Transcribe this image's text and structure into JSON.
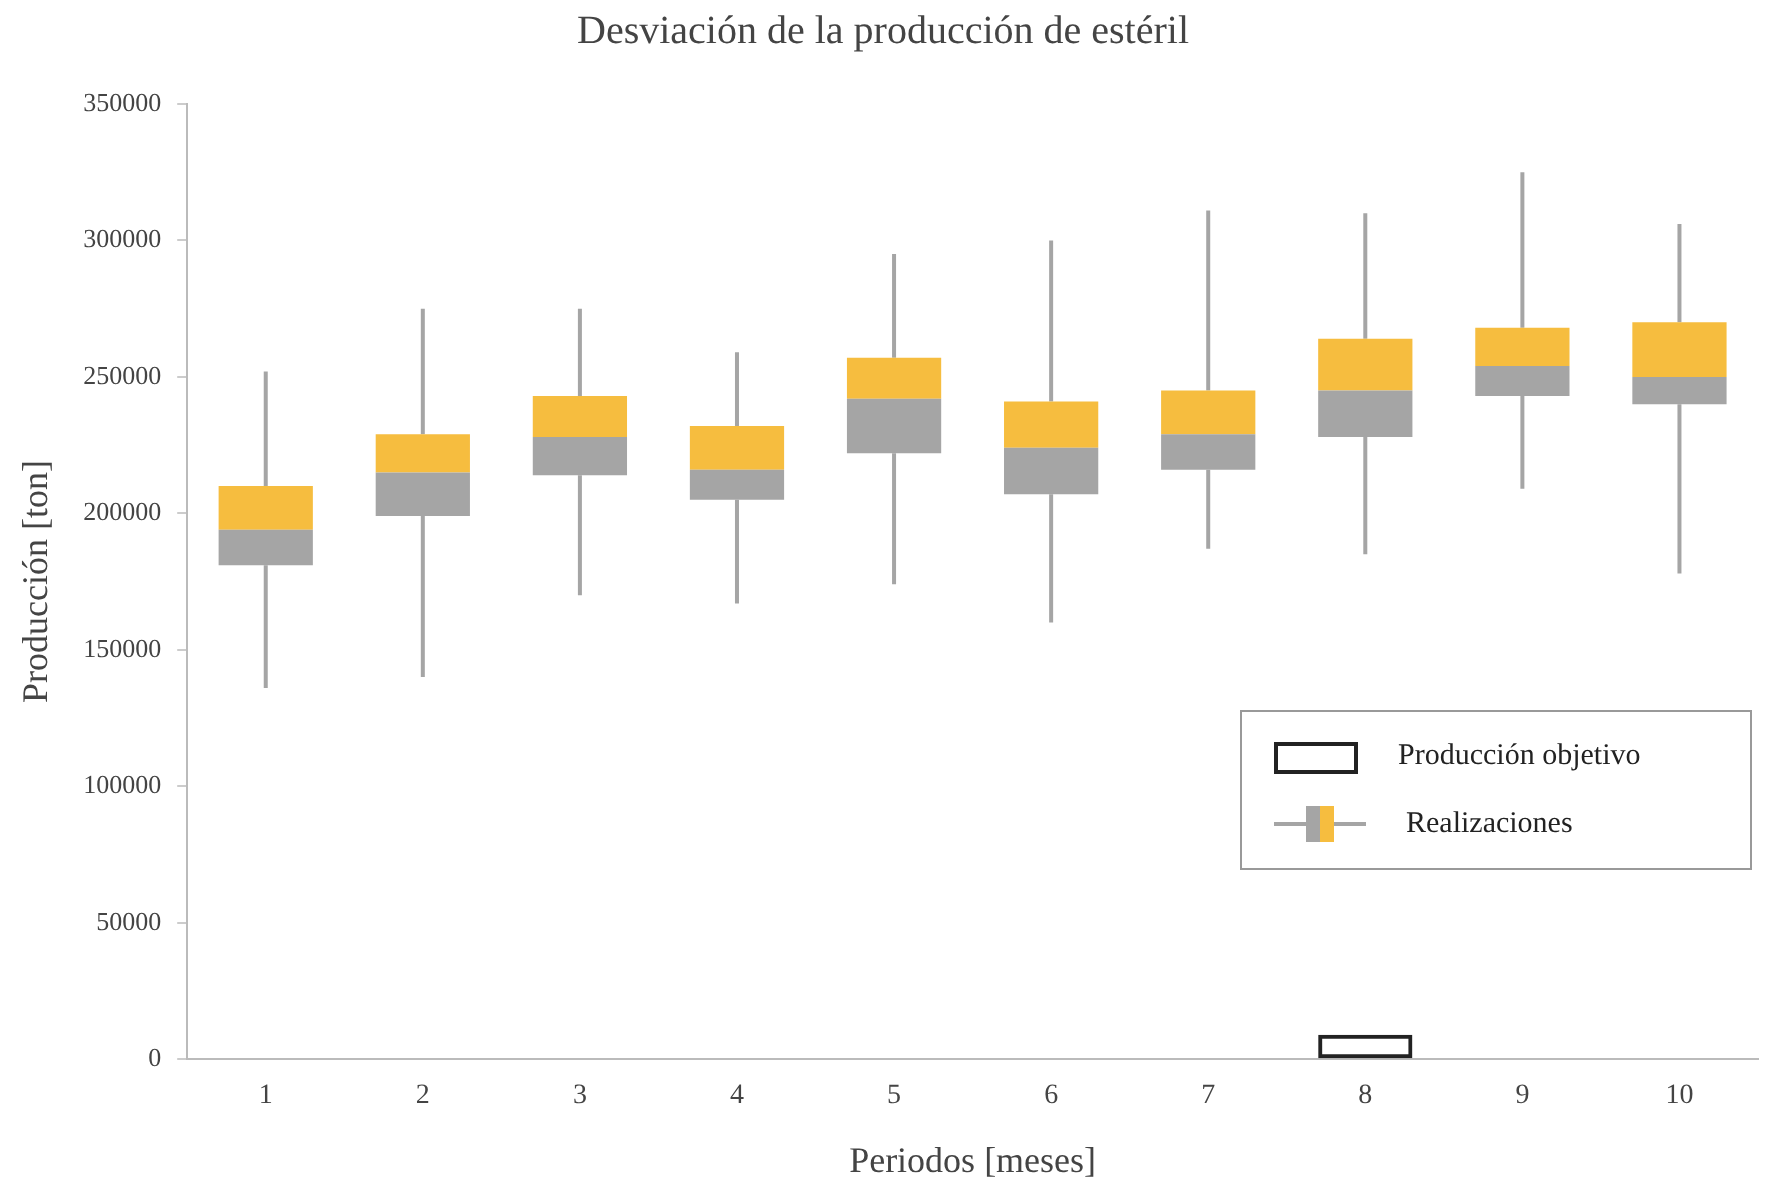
{
  "chart_data": {
    "type": "box",
    "title": "Desviación de la producción de estéril",
    "xlabel": "Periodos [meses]",
    "ylabel": "Producción [ton]",
    "categories": [
      "1",
      "2",
      "3",
      "4",
      "5",
      "6",
      "7",
      "8",
      "9",
      "10"
    ],
    "ylim": [
      0,
      350000
    ],
    "yticks": [
      0,
      50000,
      100000,
      150000,
      200000,
      250000,
      300000,
      350000
    ],
    "grid": false,
    "legend": "right",
    "series": [
      {
        "name": "Producción objetivo",
        "type": "bar",
        "color": "#222222",
        "values": [
          null,
          null,
          null,
          null,
          null,
          null,
          null,
          9000,
          null,
          null
        ]
      },
      {
        "name": "Realizaciones",
        "color": "#f6bd3f",
        "colors": [
          "#a5a5a5",
          "#a5a5a5",
          "#a5a5a5",
          "#a5a5a5",
          "#a5a5a5",
          "#a5a5a5",
          "#a5a5a5",
          "#a5a5a5",
          "#a5a5a5",
          "#a5a5a5"
        ],
        "boxes": [
          {
            "low": 136000,
            "q1": 181000,
            "median": 194000,
            "q3": 210000,
            "high": 252000
          },
          {
            "low": 140000,
            "q1": 199000,
            "median": 215000,
            "q3": 229000,
            "high": 275000
          },
          {
            "low": 170000,
            "q1": 214000,
            "median": 228000,
            "q3": 243000,
            "high": 275000
          },
          {
            "low": 167000,
            "q1": 205000,
            "median": 216000,
            "q3": 232000,
            "high": 259000
          },
          {
            "low": 174000,
            "q1": 222000,
            "median": 242000,
            "q3": 257000,
            "high": 295000
          },
          {
            "low": 160000,
            "q1": 207000,
            "median": 224000,
            "q3": 241000,
            "high": 300000
          },
          {
            "low": 187000,
            "q1": 216000,
            "median": 229000,
            "q3": 245000,
            "high": 311000
          },
          {
            "low": 185000,
            "q1": 228000,
            "median": 245000,
            "q3": 264000,
            "high": 310000
          },
          {
            "low": 209000,
            "q1": 243000,
            "median": 254000,
            "q3": 268000,
            "high": 325000
          },
          {
            "low": 178000,
            "q1": 240000,
            "median": 250000,
            "q3": 270000,
            "high": 306000
          }
        ]
      }
    ]
  }
}
